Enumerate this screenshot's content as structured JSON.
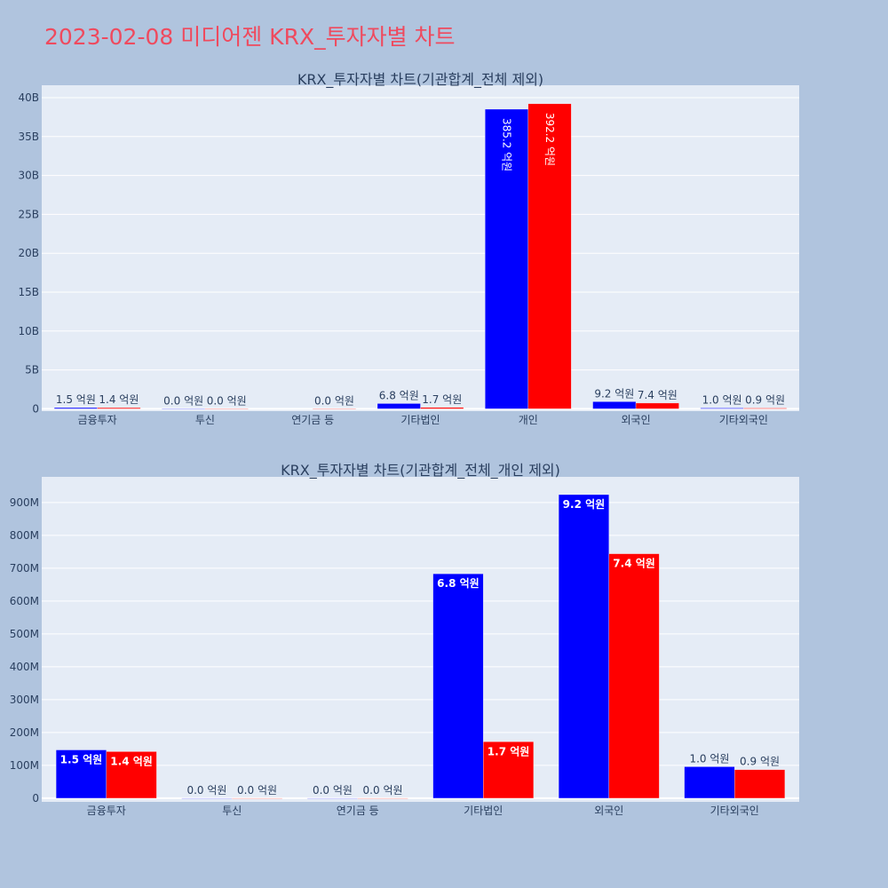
{
  "title": "2023-02-08 미디어젠 KRX_투자자별 차트",
  "colors": {
    "series1": "#0000ff",
    "series2": "#ff0000",
    "plot_bg": "#e5ecf6",
    "paper_bg": "#b0c4de",
    "text": "#2a3f5f"
  },
  "chart_data": [
    {
      "type": "bar",
      "title": "KRX_투자자별 차트(기관합계_전체 제외)",
      "categories": [
        "금융투자",
        "투신",
        "연기금 등",
        "기타법인",
        "개인",
        "외국인",
        "기타외국인"
      ],
      "series": [
        {
          "values": [
            150000000,
            0,
            null,
            680000000,
            38520000000,
            920000000,
            100000000
          ],
          "labels": [
            "1.5 억원",
            "0.0 억원",
            "",
            "6.8 억원",
            "385.2 억원",
            "9.2 억원",
            "1.0 억원"
          ]
        },
        {
          "values": [
            140000000,
            0,
            0,
            170000000,
            39220000000,
            740000000,
            90000000
          ],
          "labels": [
            "1.4 억원",
            "0.0 억원",
            "0.0 억원",
            "1.7 억원",
            "392.2 억원",
            "7.4 억원",
            "0.9 억원"
          ]
        }
      ],
      "ylim": [
        -300000000,
        41600000000
      ],
      "yticks": [
        0,
        5000000000,
        10000000000,
        15000000000,
        20000000000,
        25000000000,
        30000000000,
        35000000000,
        40000000000
      ],
      "ytick_labels": [
        "0",
        "5B",
        "10B",
        "15B",
        "20B",
        "25B",
        "30B",
        "35B",
        "40B"
      ],
      "grid": true
    },
    {
      "type": "bar",
      "title": "KRX_투자자별 차트(기관합계_전체_개인 제외)",
      "categories": [
        "금융투자",
        "투신",
        "연기금 등",
        "기타법인",
        "외국인",
        "기타외국인"
      ],
      "series": [
        {
          "values": [
            147000000,
            0,
            0,
            683000000,
            924000000,
            96000000
          ],
          "labels": [
            "1.5 억원",
            "0.0 억원",
            "0.0 억원",
            "6.8 억원",
            "9.2 억원",
            "1.0 억원"
          ]
        },
        {
          "values": [
            142000000,
            0,
            0,
            172000000,
            744000000,
            87000000
          ],
          "labels": [
            "1.4 억원",
            "0.0 억원",
            "0.0 억원",
            "1.7 억원",
            "7.4 억원",
            "0.9 억원"
          ]
        }
      ],
      "ylim": [
        -11000000,
        978000000
      ],
      "yticks": [
        0,
        100000000,
        200000000,
        300000000,
        400000000,
        500000000,
        600000000,
        700000000,
        800000000,
        900000000
      ],
      "ytick_labels": [
        "0",
        "100M",
        "200M",
        "300M",
        "400M",
        "500M",
        "600M",
        "700M",
        "800M",
        "900M"
      ],
      "grid": true
    }
  ]
}
